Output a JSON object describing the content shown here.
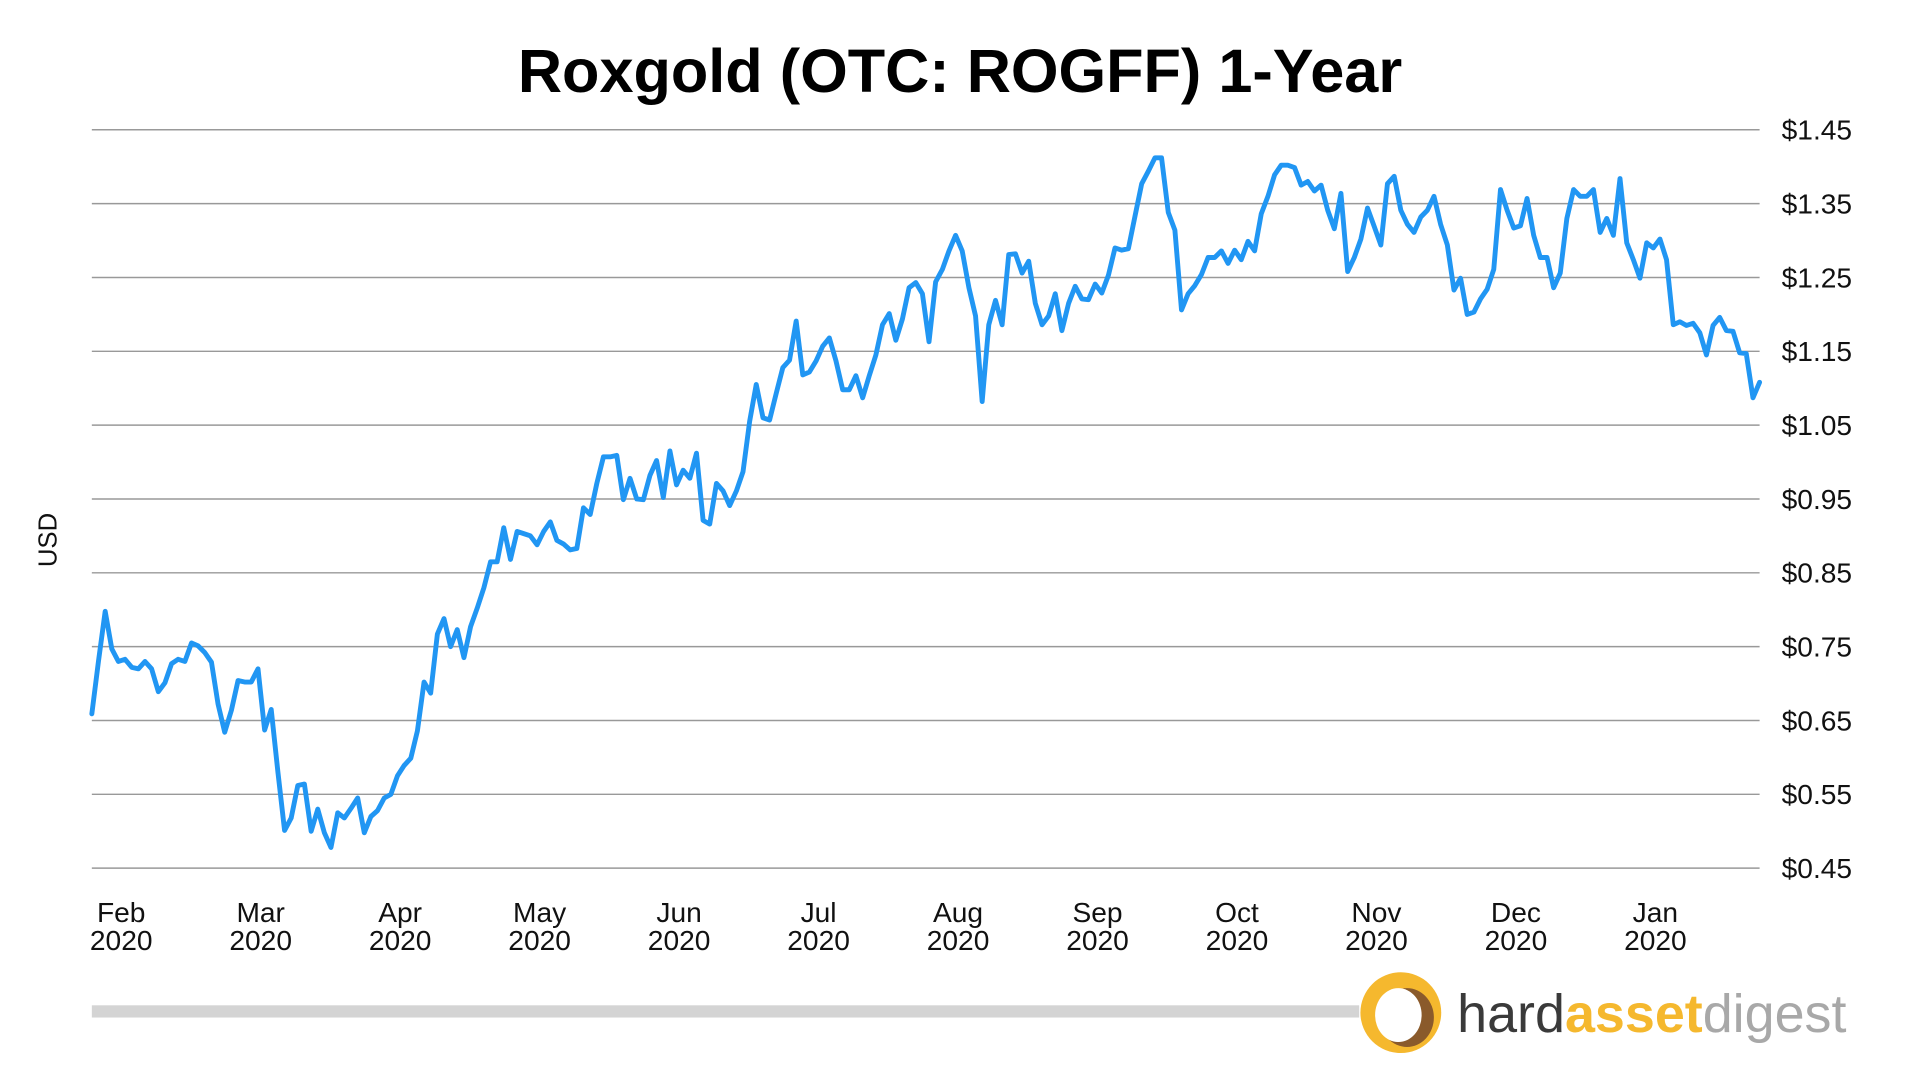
{
  "chart_data": {
    "type": "line",
    "title": "Roxgold (OTC: ROGFF) 1-Year",
    "xlabel": "",
    "ylabel": "USD",
    "ylim": [
      0.45,
      1.45
    ],
    "yticks": [
      "$1.45",
      "$1.35",
      "$1.25",
      "$1.15",
      "$1.05",
      "$0.95",
      "$0.85",
      "$0.75",
      "$0.65",
      "$0.55",
      "$0.45"
    ],
    "ytick_values": [
      1.45,
      1.35,
      1.25,
      1.15,
      1.05,
      0.95,
      0.85,
      0.75,
      0.65,
      0.55,
      0.45
    ],
    "xticks": [
      {
        "month": "Feb",
        "year": "2020"
      },
      {
        "month": "Mar",
        "year": "2020"
      },
      {
        "month": "Apr",
        "year": "2020"
      },
      {
        "month": "May",
        "year": "2020"
      },
      {
        "month": "Jun",
        "year": "2020"
      },
      {
        "month": "Jul",
        "year": "2020"
      },
      {
        "month": "Aug",
        "year": "2020"
      },
      {
        "month": "Sep",
        "year": "2020"
      },
      {
        "month": "Oct",
        "year": "2020"
      },
      {
        "month": "Nov",
        "year": "2020"
      },
      {
        "month": "Dec",
        "year": "2020"
      },
      {
        "month": "Jan",
        "year": "2020"
      }
    ],
    "grid": true,
    "series": [
      {
        "name": "ROGFF",
        "color": "#2196f3",
        "values": [
          0.659,
          0.73,
          0.798,
          0.747,
          0.73,
          0.733,
          0.722,
          0.72,
          0.73,
          0.72,
          0.689,
          0.701,
          0.727,
          0.733,
          0.73,
          0.755,
          0.751,
          0.742,
          0.729,
          0.672,
          0.634,
          0.664,
          0.704,
          0.702,
          0.702,
          0.72,
          0.637,
          0.665,
          0.581,
          0.501,
          0.518,
          0.562,
          0.564,
          0.5,
          0.53,
          0.498,
          0.478,
          0.525,
          0.518,
          0.531,
          0.545,
          0.498,
          0.52,
          0.528,
          0.545,
          0.55,
          0.575,
          0.589,
          0.599,
          0.636,
          0.702,
          0.687,
          0.767,
          0.788,
          0.75,
          0.773,
          0.735,
          0.777,
          0.802,
          0.83,
          0.865,
          0.865,
          0.911,
          0.868,
          0.906,
          0.903,
          0.9,
          0.888,
          0.906,
          0.919,
          0.894,
          0.889,
          0.881,
          0.883,
          0.938,
          0.929,
          0.971,
          1.007,
          1.007,
          1.009,
          0.949,
          0.978,
          0.95,
          0.949,
          0.982,
          1.002,
          0.952,
          1.015,
          0.969,
          0.989,
          0.978,
          1.012,
          0.921,
          0.916,
          0.971,
          0.961,
          0.941,
          0.961,
          0.987,
          1.055,
          1.105,
          1.06,
          1.057,
          1.093,
          1.128,
          1.138,
          1.191,
          1.118,
          1.122,
          1.137,
          1.157,
          1.168,
          1.137,
          1.098,
          1.098,
          1.117,
          1.087,
          1.117,
          1.145,
          1.186,
          1.201,
          1.165,
          1.194,
          1.236,
          1.243,
          1.228,
          1.163,
          1.244,
          1.261,
          1.286,
          1.307,
          1.286,
          1.236,
          1.198,
          1.082,
          1.186,
          1.219,
          1.186,
          1.281,
          1.282,
          1.256,
          1.272,
          1.215,
          1.186,
          1.198,
          1.228,
          1.178,
          1.215,
          1.238,
          1.221,
          1.22,
          1.241,
          1.229,
          1.253,
          1.29,
          1.287,
          1.289,
          1.333,
          1.377,
          1.394,
          1.412,
          1.412,
          1.338,
          1.314,
          1.206,
          1.228,
          1.239,
          1.254,
          1.277,
          1.277,
          1.286,
          1.269,
          1.287,
          1.274,
          1.299,
          1.286,
          1.336,
          1.36,
          1.389,
          1.402,
          1.402,
          1.399,
          1.375,
          1.38,
          1.367,
          1.375,
          1.341,
          1.316,
          1.364,
          1.258,
          1.277,
          1.302,
          1.344,
          1.319,
          1.294,
          1.377,
          1.387,
          1.341,
          1.322,
          1.311,
          1.332,
          1.341,
          1.36,
          1.322,
          1.294,
          1.233,
          1.249,
          1.2,
          1.203,
          1.221,
          1.234,
          1.261,
          1.369,
          1.341,
          1.317,
          1.32,
          1.357,
          1.307,
          1.277,
          1.277,
          1.236,
          1.256,
          1.33,
          1.369,
          1.36,
          1.36,
          1.369,
          1.311,
          1.33,
          1.307,
          1.384,
          1.297,
          1.274,
          1.249,
          1.297,
          1.29,
          1.302,
          1.274,
          1.186,
          1.19,
          1.185,
          1.188,
          1.175,
          1.145,
          1.185,
          1.196,
          1.178,
          1.177,
          1.148,
          1.147,
          1.087,
          1.108
        ]
      }
    ]
  },
  "logo": {
    "part1": "hard",
    "part2": "asset",
    "part3": "digest",
    "colors": {
      "hard": "#3a3a3a",
      "asset": "#f5b82e",
      "digest": "#a8a8a8"
    }
  }
}
